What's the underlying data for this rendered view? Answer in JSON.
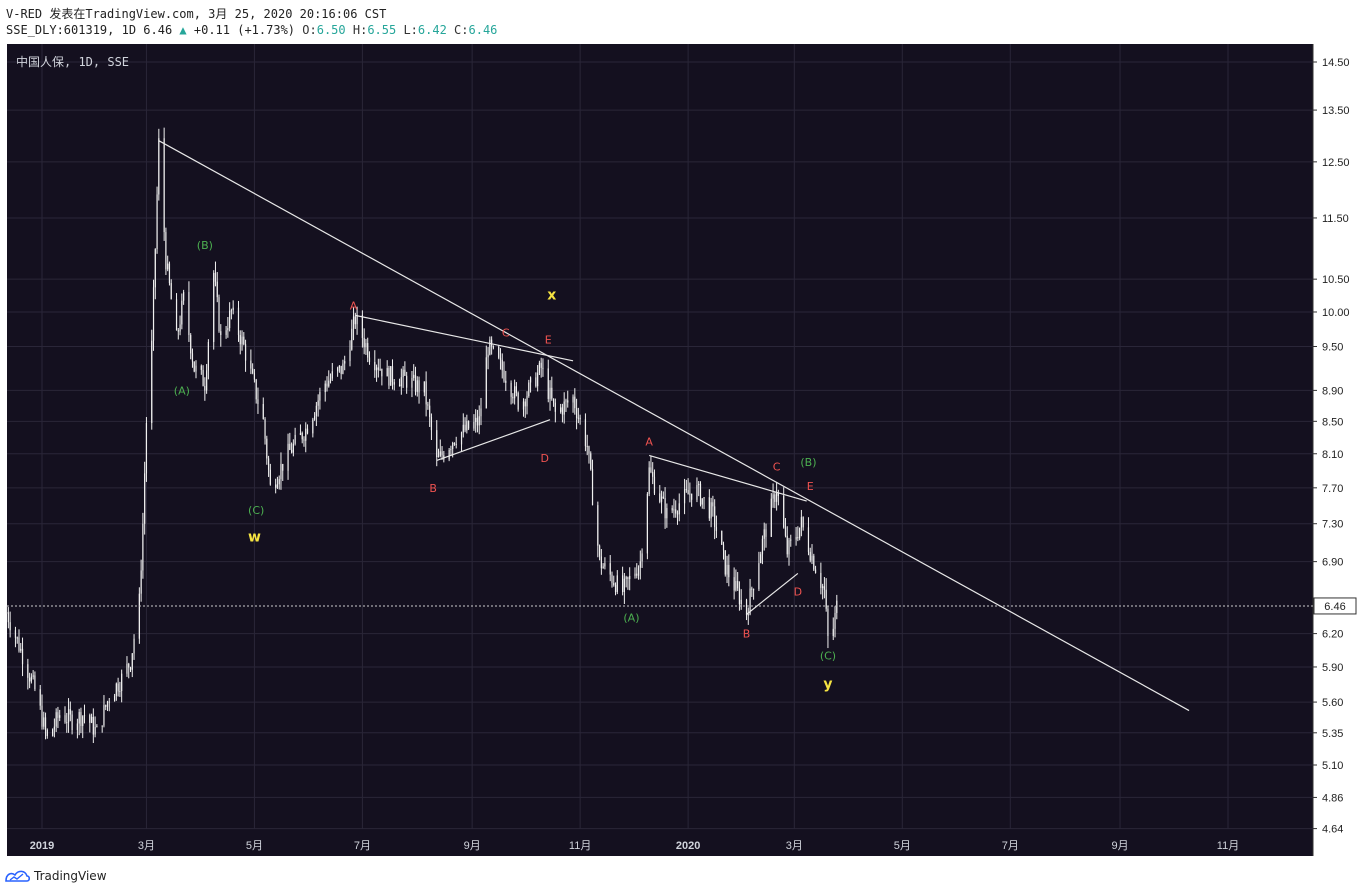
{
  "header": {
    "line1": "V-RED 发表在TradingView.com, 3月 25, 2020 20:16:06 CST",
    "symbol": "SSE_DLY:601319, 1D 6.46",
    "up_arrow": "▲",
    "change": "+0.11 (+1.73%)",
    "o_label": "O:",
    "o_value": "6.50",
    "h_label": "H:",
    "h_value": "6.55",
    "l_label": "L:",
    "l_value": "6.42",
    "c_label": "C:",
    "c_value": "6.46"
  },
  "footer": {
    "logo_icon": "tradingview-logo-icon",
    "brand": "TradingView"
  },
  "colors": {
    "background": "#14101f",
    "candle": "#f0f0f0",
    "grid": "#2a2638",
    "axis_text": "#d1d4dc",
    "wave_red": "#ef5350",
    "wave_green": "#4caf50",
    "wave_yellow": "#f5e342",
    "up": "#26a69a"
  },
  "chart_data": {
    "type": "candlestick",
    "title": "中国人保, 1D, SSE",
    "y_scale": "log",
    "y_ticks": [
      "14.50",
      "13.50",
      "12.50",
      "11.50",
      "10.50",
      "10.00",
      "9.50",
      "8.90",
      "8.50",
      "8.10",
      "7.70",
      "7.30",
      "6.90",
      "6.20",
      "5.90",
      "5.60",
      "5.35",
      "5.10",
      "4.86",
      "4.64"
    ],
    "x_ticks": [
      {
        "label": "2019",
        "date": "2019-01-01",
        "bold": true
      },
      {
        "label": "3月",
        "date": "2019-03-01"
      },
      {
        "label": "5月",
        "date": "2019-05-01"
      },
      {
        "label": "7月",
        "date": "2019-07-01"
      },
      {
        "label": "9月",
        "date": "2019-09-01"
      },
      {
        "label": "11月",
        "date": "2019-11-01"
      },
      {
        "label": "2020",
        "date": "2020-01-01",
        "bold": true
      },
      {
        "label": "3月",
        "date": "2020-03-01"
      },
      {
        "label": "5月",
        "date": "2020-05-01"
      },
      {
        "label": "7月",
        "date": "2020-07-01"
      },
      {
        "label": "9月",
        "date": "2020-09-01"
      },
      {
        "label": "11月",
        "date": "2020-11-01"
      }
    ],
    "current_price": "6.46",
    "price_series": [
      [
        "2018-12-12",
        6.4
      ],
      [
        "2018-12-20",
        6.05
      ],
      [
        "2018-12-28",
        5.7
      ],
      [
        "2019-01-04",
        5.3
      ],
      [
        "2019-01-11",
        5.5
      ],
      [
        "2019-01-18",
        5.45
      ],
      [
        "2019-01-25",
        5.5
      ],
      [
        "2019-02-01",
        5.35
      ],
      [
        "2019-02-08",
        5.65
      ],
      [
        "2019-02-15",
        5.8
      ],
      [
        "2019-02-20",
        5.95
      ],
      [
        "2019-02-25",
        6.5
      ],
      [
        "2019-02-27",
        7.3
      ],
      [
        "2019-03-01",
        8.5
      ],
      [
        "2019-03-04",
        9.5
      ],
      [
        "2019-03-06",
        11.0
      ],
      [
        "2019-03-08",
        12.85
      ],
      [
        "2019-03-12",
        10.8
      ],
      [
        "2019-03-18",
        9.6
      ],
      [
        "2019-03-22",
        10.2
      ],
      [
        "2019-03-28",
        9.2
      ],
      [
        "2019-04-03",
        9.0
      ],
      [
        "2019-04-08",
        10.6
      ],
      [
        "2019-04-12",
        9.6
      ],
      [
        "2019-04-18",
        10.0
      ],
      [
        "2019-04-25",
        9.5
      ],
      [
        "2019-05-06",
        8.5
      ],
      [
        "2019-05-10",
        7.7
      ],
      [
        "2019-05-20",
        8.1
      ],
      [
        "2019-05-30",
        8.4
      ],
      [
        "2019-06-10",
        9.0
      ],
      [
        "2019-06-20",
        9.2
      ],
      [
        "2019-06-27",
        9.9
      ],
      [
        "2019-07-05",
        9.4
      ],
      [
        "2019-07-15",
        9.1
      ],
      [
        "2019-07-25",
        9.05
      ],
      [
        "2019-08-05",
        8.9
      ],
      [
        "2019-08-12",
        8.0
      ],
      [
        "2019-08-22",
        8.3
      ],
      [
        "2019-09-05",
        8.5
      ],
      [
        "2019-09-10",
        9.5
      ],
      [
        "2019-09-20",
        9.1
      ],
      [
        "2019-09-28",
        8.7
      ],
      [
        "2019-10-10",
        9.2
      ],
      [
        "2019-10-18",
        8.6
      ],
      [
        "2019-10-28",
        8.8
      ],
      [
        "2019-11-05",
        8.2
      ],
      [
        "2019-11-12",
        6.9
      ],
      [
        "2019-11-25",
        6.6
      ],
      [
        "2019-12-05",
        6.9
      ],
      [
        "2019-12-10",
        7.9
      ],
      [
        "2019-12-20",
        7.4
      ],
      [
        "2020-01-05",
        7.7
      ],
      [
        "2020-01-15",
        7.4
      ],
      [
        "2020-01-22",
        6.85
      ],
      [
        "2020-02-03",
        6.4
      ],
      [
        "2020-02-12",
        7.1
      ],
      [
        "2020-02-20",
        7.7
      ],
      [
        "2020-02-26",
        7.0
      ],
      [
        "2020-03-05",
        7.3
      ],
      [
        "2020-03-12",
        6.9
      ],
      [
        "2020-03-18",
        6.6
      ],
      [
        "2020-03-20",
        6.15
      ],
      [
        "2020-03-23",
        6.25
      ],
      [
        "2020-03-25",
        6.46
      ]
    ],
    "trendlines": [
      {
        "start": [
          "2019-03-08",
          12.9
        ],
        "end": [
          "2020-10-10",
          5.53
        ],
        "color": "white"
      },
      {
        "start": [
          "2019-06-27",
          9.95
        ],
        "end": [
          "2019-10-28",
          9.3
        ],
        "color": "white"
      },
      {
        "start": [
          "2019-08-12",
          8.02
        ],
        "end": [
          "2019-10-15",
          8.52
        ],
        "color": "white"
      },
      {
        "start": [
          "2019-12-10",
          8.08
        ],
        "end": [
          "2020-03-08",
          7.55
        ],
        "color": "white"
      },
      {
        "start": [
          "2020-02-03",
          6.38
        ],
        "end": [
          "2020-03-03",
          6.78
        ],
        "color": "white"
      }
    ],
    "annotations": [
      {
        "text": "(B)",
        "date": "2019-04-03",
        "price": 11.05,
        "color": "green"
      },
      {
        "text": "(A)",
        "date": "2019-03-21",
        "price": 8.9,
        "color": "green"
      },
      {
        "text": "(C)",
        "date": "2019-05-02",
        "price": 7.45,
        "color": "green"
      },
      {
        "text": "w",
        "date": "2019-05-01",
        "price": 7.15,
        "color": "yellow"
      },
      {
        "text": "A",
        "date": "2019-06-26",
        "price": 10.1,
        "color": "red"
      },
      {
        "text": "B",
        "date": "2019-08-10",
        "price": 7.7,
        "color": "red"
      },
      {
        "text": "C",
        "date": "2019-09-20",
        "price": 9.7,
        "color": "red"
      },
      {
        "text": "D",
        "date": "2019-10-12",
        "price": 8.05,
        "color": "red"
      },
      {
        "text": "E",
        "date": "2019-10-14",
        "price": 9.6,
        "color": "red"
      },
      {
        "text": "x",
        "date": "2019-10-16",
        "price": 10.25,
        "color": "yellow"
      },
      {
        "text": "A",
        "date": "2019-12-10",
        "price": 8.25,
        "color": "red"
      },
      {
        "text": "(A)",
        "date": "2019-11-30",
        "price": 6.35,
        "color": "green"
      },
      {
        "text": "B",
        "date": "2020-02-03",
        "price": 6.2,
        "color": "red"
      },
      {
        "text": "C",
        "date": "2020-02-20",
        "price": 7.95,
        "color": "red"
      },
      {
        "text": "(B)",
        "date": "2020-03-09",
        "price": 8.0,
        "color": "green"
      },
      {
        "text": "E",
        "date": "2020-03-10",
        "price": 7.72,
        "color": "red"
      },
      {
        "text": "D",
        "date": "2020-03-03",
        "price": 6.6,
        "color": "red"
      },
      {
        "text": "(C)",
        "date": "2020-03-20",
        "price": 6.0,
        "color": "green"
      },
      {
        "text": "y",
        "date": "2020-03-20",
        "price": 5.75,
        "color": "yellow"
      }
    ]
  }
}
